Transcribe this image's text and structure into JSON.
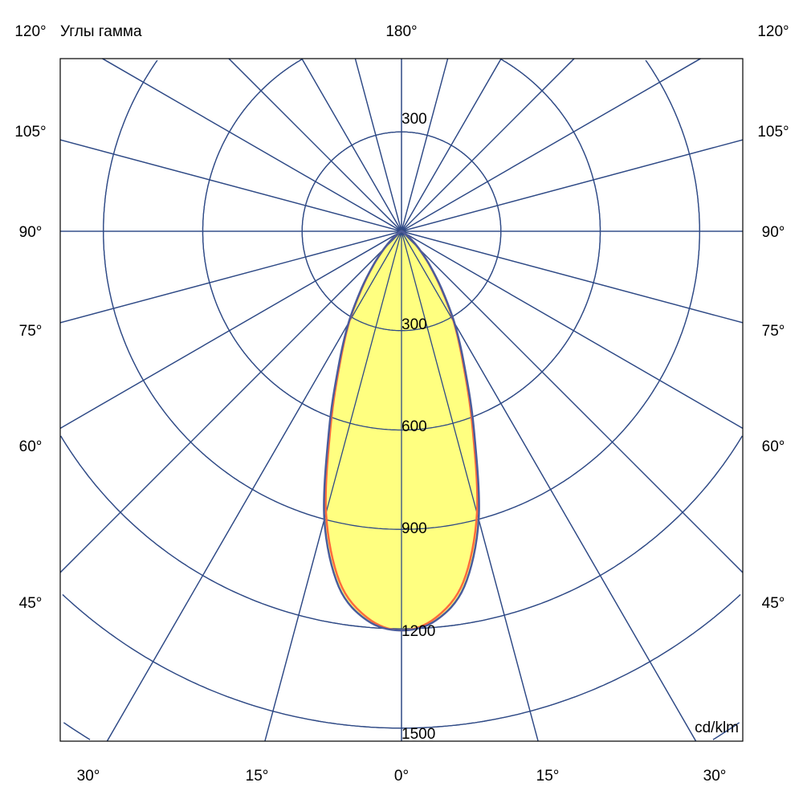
{
  "chart_data": {
    "type": "polar",
    "title": "Углы гамма",
    "unit_label": "cd/klm",
    "top_label": "180°",
    "side_labels_left": [
      "120°",
      "105°",
      "90°",
      "75°",
      "60°",
      "45°"
    ],
    "side_labels_right": [
      "120°",
      "105°",
      "90°",
      "75°",
      "60°",
      "45°"
    ],
    "bottom_labels": [
      "30°",
      "15°",
      "0°",
      "15°",
      "30°"
    ],
    "radial_ticks": [
      300,
      600,
      900,
      1200,
      1500
    ],
    "upper_tick_label": "300",
    "radial_max": 1500,
    "grid_angle_step_deg": 15,
    "colors": {
      "grid": "#2f4a86",
      "fill": "#ffff80",
      "curve_c0": "#4a5c9c",
      "curve_c90": "#ff6a3c"
    },
    "series": [
      {
        "angles_deg": [
          0,
          5,
          10,
          15,
          20,
          25,
          30,
          35,
          40,
          45,
          50,
          60,
          70,
          80,
          90
        ],
        "values": [
          1205,
          1180,
          1090,
          900,
          640,
          450,
          320,
          210,
          130,
          75,
          40,
          10,
          2,
          0,
          0
        ]
      },
      {
        "angles_deg": [
          0,
          5,
          10,
          15,
          20,
          25,
          30,
          35,
          40,
          45,
          50,
          60,
          70,
          80,
          90
        ],
        "values": [
          1205,
          1172,
          1075,
          880,
          625,
          440,
          315,
          205,
          128,
          74,
          40,
          10,
          2,
          0,
          0
        ]
      }
    ]
  }
}
